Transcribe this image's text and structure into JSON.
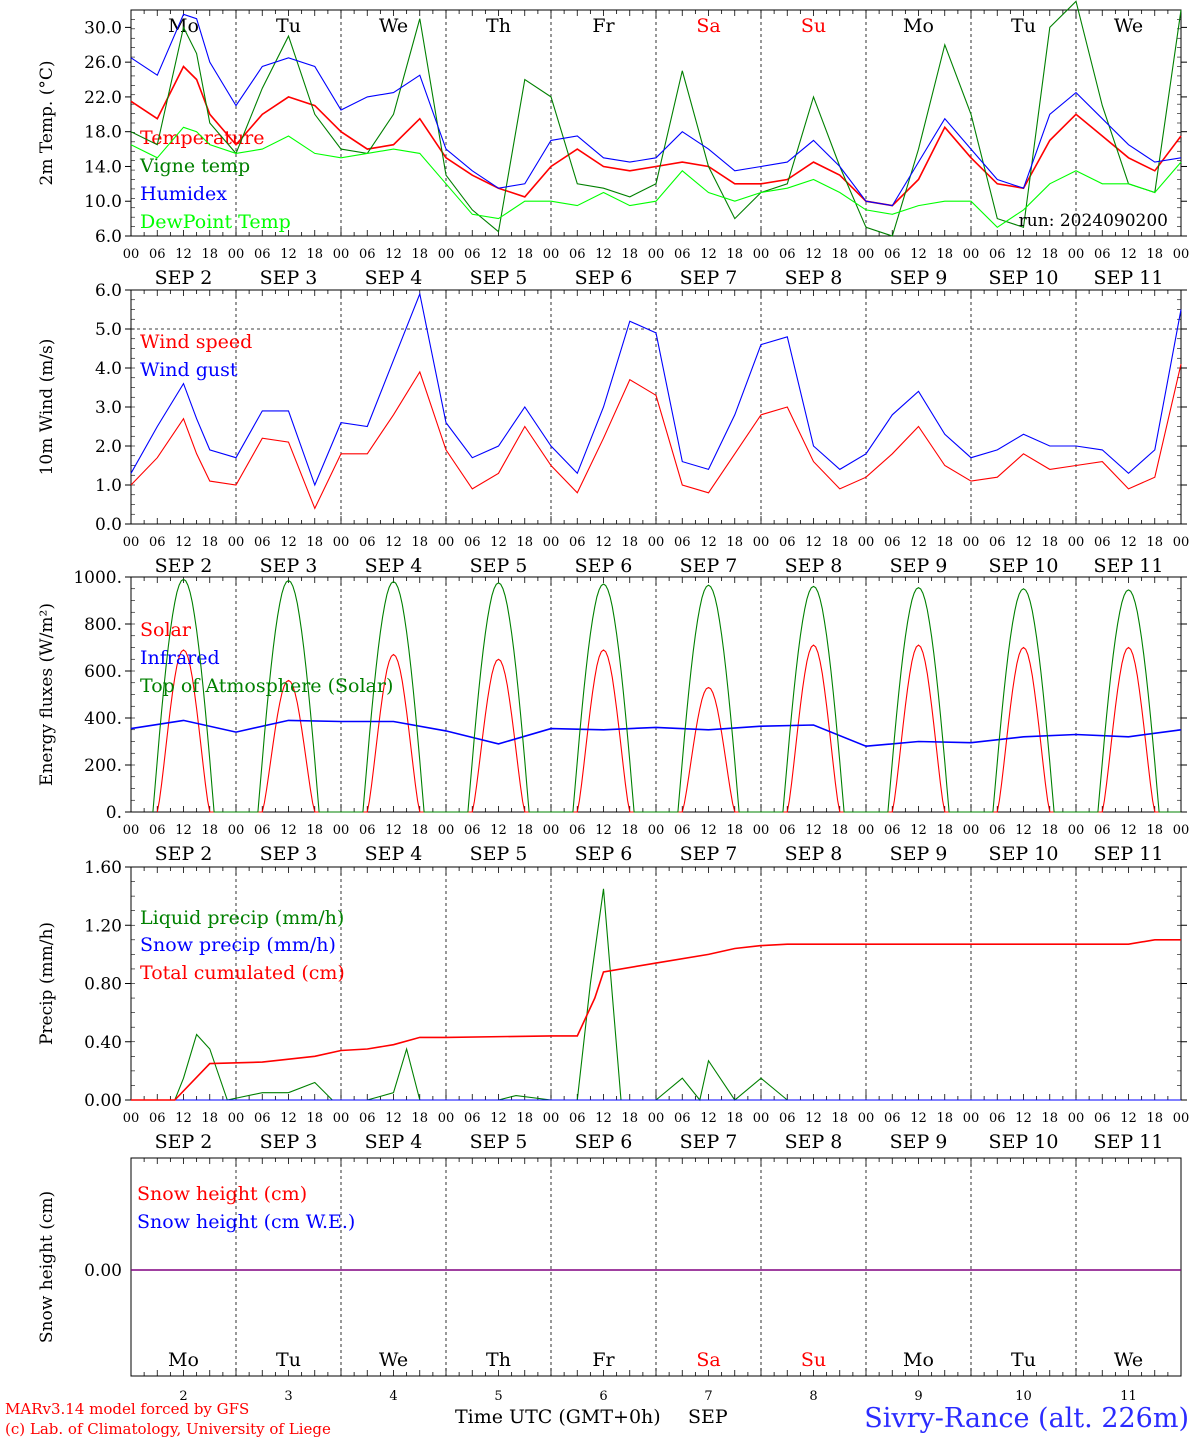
{
  "colors": {
    "red": "#ff0000",
    "dark_green": "#008000",
    "blue": "#0000ff",
    "light_green": "#00ff00",
    "purple": "#800080",
    "black": "#000000",
    "title_blue": "#2b2bff"
  },
  "days": {
    "weekday_labels": [
      "Mo",
      "Tu",
      "We",
      "Th",
      "Fr",
      "Sa",
      "Su",
      "Mo",
      "Tu",
      "We"
    ],
    "weekday_colors": [
      "black",
      "black",
      "black",
      "black",
      "black",
      "red",
      "red",
      "black",
      "black",
      "black"
    ],
    "day_numbers": [
      "2",
      "3",
      "4",
      "5",
      "6",
      "7",
      "8",
      "9",
      "10",
      "11"
    ],
    "hour_ticks": [
      "00",
      "06",
      "12",
      "18"
    ],
    "end_hour": "00",
    "month": "SEP"
  },
  "footer": {
    "credit_line1": "MARv3.14 model forced by GFS",
    "credit_line2": "(c) Lab. of Climatology, University of Liege",
    "xlabel": "Time UTC (GMT+0h)",
    "month_label": "SEP",
    "station": "Sivry-Rance (alt. 226m)"
  },
  "chart_data": [
    {
      "id": "temp",
      "type": "line",
      "ylabel": "2m Temp. (°C)",
      "ylim": [
        6,
        32
      ],
      "yticks": [
        "6.0",
        "10.0",
        "14.0",
        "18.0",
        "22.0",
        "26.0",
        "30.0"
      ],
      "annotation": "run: 2024090200",
      "x_unit": "hours since Mon SEP 2 00 UTC",
      "series": [
        {
          "name": "Temperature",
          "color": "red",
          "x": [
            0,
            6,
            12,
            15,
            18,
            24,
            30,
            36,
            42,
            48,
            54,
            60,
            66,
            72,
            78,
            84,
            90,
            96,
            102,
            108,
            114,
            120,
            126,
            132,
            138,
            144,
            150,
            156,
            162,
            168,
            174,
            180,
            186,
            192,
            198,
            204,
            210,
            216,
            222,
            228,
            234,
            240
          ],
          "y": [
            21.5,
            19.5,
            25.5,
            24,
            20,
            16.5,
            20,
            22,
            21,
            18,
            16,
            16.5,
            19.5,
            15,
            13,
            11.5,
            10.5,
            14,
            16,
            14,
            13.5,
            14,
            14.5,
            14,
            12,
            12,
            12.5,
            14.5,
            13,
            10,
            9.5,
            12.5,
            18.5,
            15,
            12,
            11.5,
            17,
            20,
            17.5,
            15,
            13.5,
            17.5
          ]
        },
        {
          "name": "Vigne temp",
          "color": "dark_green",
          "x": [
            0,
            6,
            12,
            15,
            18,
            24,
            30,
            36,
            42,
            48,
            54,
            60,
            66,
            72,
            78,
            84,
            90,
            96,
            102,
            108,
            114,
            120,
            126,
            132,
            138,
            144,
            150,
            156,
            162,
            168,
            174,
            180,
            186,
            192,
            198,
            204,
            210,
            216,
            222,
            228,
            234,
            240
          ],
          "y": [
            18,
            16.5,
            30,
            27,
            19,
            15.5,
            23,
            29,
            20,
            16,
            15.5,
            20,
            31,
            13,
            9,
            6.5,
            24,
            22,
            12,
            11.5,
            10.5,
            12,
            25,
            14,
            8,
            11,
            12,
            22,
            14,
            7,
            6,
            16,
            28,
            20,
            8,
            7,
            30,
            33,
            21,
            12,
            11,
            32
          ]
        },
        {
          "name": "Humidex",
          "color": "blue",
          "x": [
            0,
            6,
            12,
            15,
            18,
            24,
            30,
            36,
            42,
            48,
            54,
            60,
            66,
            72,
            78,
            84,
            90,
            96,
            102,
            108,
            114,
            120,
            126,
            132,
            138,
            144,
            150,
            156,
            162,
            168,
            174,
            180,
            186,
            192,
            198,
            204,
            210,
            216,
            222,
            228,
            234,
            240
          ],
          "y": [
            26.5,
            24.5,
            31.5,
            31,
            26,
            21,
            25.5,
            26.5,
            25.5,
            20.5,
            22,
            22.5,
            24.5,
            16,
            13.5,
            11.5,
            12,
            17,
            17.5,
            15,
            14.5,
            15,
            18,
            16,
            13.5,
            14,
            14.5,
            17,
            14,
            10,
            9.5,
            14.5,
            19.5,
            16,
            12.5,
            11.5,
            20,
            22.5,
            19.5,
            16.5,
            14.5,
            15
          ]
        },
        {
          "name": "DewPoint Temp",
          "color": "light_green",
          "x": [
            0,
            6,
            12,
            15,
            18,
            24,
            30,
            36,
            42,
            48,
            54,
            60,
            66,
            72,
            78,
            84,
            90,
            96,
            102,
            108,
            114,
            120,
            126,
            132,
            138,
            144,
            150,
            156,
            162,
            168,
            174,
            180,
            186,
            192,
            198,
            204,
            210,
            216,
            222,
            228,
            234,
            240
          ],
          "y": [
            16.5,
            15,
            18.5,
            18,
            16.5,
            15.5,
            16,
            17.5,
            15.5,
            15,
            15.5,
            16,
            15.5,
            12,
            8.5,
            8,
            10,
            10,
            9.5,
            11,
            9.5,
            10,
            13.5,
            11,
            10,
            11,
            11.5,
            12.5,
            11,
            9,
            8.5,
            9.5,
            10,
            10,
            7,
            9,
            12,
            13.5,
            12,
            12,
            11,
            14.5
          ]
        }
      ]
    },
    {
      "id": "wind",
      "type": "line",
      "ylabel": "10m Wind (m/s)",
      "ylim": [
        0,
        6
      ],
      "yticks": [
        "0.0",
        "1.0",
        "2.0",
        "3.0",
        "4.0",
        "5.0",
        "6.0"
      ],
      "hline": 5.0,
      "x_unit": "hours since Mon SEP 2 00 UTC",
      "series": [
        {
          "name": "Wind speed",
          "color": "red",
          "x": [
            0,
            6,
            12,
            15,
            18,
            24,
            30,
            36,
            42,
            48,
            54,
            60,
            66,
            72,
            78,
            84,
            90,
            96,
            102,
            108,
            114,
            120,
            126,
            132,
            138,
            144,
            150,
            156,
            162,
            168,
            174,
            180,
            186,
            192,
            198,
            204,
            210,
            216,
            222,
            228,
            234,
            240
          ],
          "y": [
            1,
            1.7,
            2.7,
            1.8,
            1.1,
            1,
            2.2,
            2.1,
            0.4,
            1.8,
            1.8,
            2.8,
            3.9,
            1.9,
            0.9,
            1.3,
            2.5,
            1.5,
            0.8,
            2.2,
            3.7,
            3.3,
            1,
            0.8,
            1.8,
            2.8,
            3.0,
            1.6,
            0.9,
            1.2,
            1.8,
            2.5,
            1.5,
            1.1,
            1.2,
            1.8,
            1.4,
            1.5,
            1.6,
            0.9,
            1.2,
            4.1
          ]
        },
        {
          "name": "Wind gust",
          "color": "blue",
          "x": [
            0,
            6,
            12,
            15,
            18,
            24,
            30,
            36,
            42,
            48,
            54,
            60,
            66,
            72,
            78,
            84,
            90,
            96,
            102,
            108,
            114,
            120,
            126,
            132,
            138,
            144,
            150,
            156,
            162,
            168,
            174,
            180,
            186,
            192,
            198,
            204,
            210,
            216,
            222,
            228,
            234,
            240
          ],
          "y": [
            1.3,
            2.5,
            3.6,
            2.7,
            1.9,
            1.7,
            2.9,
            2.9,
            1.0,
            2.6,
            2.5,
            4.2,
            5.9,
            2.6,
            1.7,
            2.0,
            3.0,
            2.0,
            1.3,
            3.0,
            5.2,
            4.9,
            1.6,
            1.4,
            2.8,
            4.6,
            4.8,
            2.0,
            1.4,
            1.8,
            2.8,
            3.4,
            2.3,
            1.7,
            1.9,
            2.3,
            2.0,
            2.0,
            1.9,
            1.3,
            1.9,
            5.5
          ]
        }
      ]
    },
    {
      "id": "energy",
      "type": "line",
      "ylabel": "Energy fluxes (W/m²)",
      "ylim": [
        0,
        1000
      ],
      "yticks": [
        "0.",
        "200.",
        "400.",
        "600.",
        "800.",
        "1000."
      ],
      "x_unit": "hours since Mon SEP 2 00 UTC",
      "series": [
        {
          "name": "Solar",
          "color": "red",
          "day_peaks": [
            690,
            560,
            670,
            650,
            690,
            530,
            710,
            710,
            700,
            700
          ]
        },
        {
          "name": "Infrared",
          "color": "blue",
          "x": [
            0,
            12,
            24,
            36,
            48,
            60,
            72,
            84,
            96,
            108,
            120,
            132,
            144,
            156,
            168,
            180,
            192,
            204,
            216,
            228,
            240
          ],
          "y": [
            355,
            390,
            340,
            390,
            385,
            385,
            345,
            290,
            355,
            350,
            360,
            350,
            365,
            370,
            280,
            300,
            295,
            320,
            330,
            320,
            350
          ]
        },
        {
          "name": "Top of Atmosphere (Solar)",
          "color": "dark_green",
          "day_peaks": [
            990,
            985,
            980,
            975,
            970,
            965,
            960,
            955,
            950,
            945
          ]
        }
      ]
    },
    {
      "id": "precip",
      "type": "line",
      "ylabel": "Precip (mm/h)",
      "ylim": [
        0,
        1.6
      ],
      "yticks": [
        "0.00",
        "0.40",
        "0.80",
        "1.20",
        "1.60"
      ],
      "x_unit": "hours since Mon SEP 2 00 UTC",
      "series": [
        {
          "name": "Liquid precip (mm/h)",
          "color": "dark_green",
          "x": [
            0,
            10,
            12,
            15,
            18,
            22,
            30,
            36,
            42,
            46,
            54,
            60,
            63,
            66,
            72,
            84,
            88,
            96,
            102,
            105,
            108,
            112,
            120,
            126,
            130,
            132,
            138,
            144,
            150,
            156
          ],
          "y": [
            0,
            0,
            0.15,
            0.45,
            0.35,
            0,
            0.05,
            0.05,
            0.12,
            0,
            0,
            0.05,
            0.35,
            0,
            0,
            0,
            0.03,
            0,
            0,
            0.8,
            1.45,
            0,
            0,
            0.15,
            0,
            0.27,
            0,
            0.15,
            0,
            0
          ]
        },
        {
          "name": "Snow precip (mm/h)",
          "color": "blue",
          "x": [
            0,
            240
          ],
          "y": [
            0,
            0
          ]
        },
        {
          "name": "Total cumulated (cm)",
          "color": "red",
          "x": [
            0,
            10,
            18,
            30,
            42,
            48,
            54,
            60,
            66,
            72,
            96,
            102,
            106,
            108,
            120,
            132,
            138,
            144,
            150,
            228,
            234,
            240
          ],
          "y": [
            0,
            0,
            0.25,
            0.26,
            0.3,
            0.34,
            0.35,
            0.38,
            0.43,
            0.43,
            0.44,
            0.44,
            0.7,
            0.88,
            0.94,
            1.0,
            1.04,
            1.06,
            1.07,
            1.07,
            1.1,
            1.1
          ]
        }
      ]
    },
    {
      "id": "snow",
      "type": "line",
      "ylabel": "Snow height (cm)",
      "yticks": [
        "0.00"
      ],
      "x_unit": "hours since Mon SEP 2 00 UTC",
      "series": [
        {
          "name": "Snow height (cm)",
          "color": "red",
          "x": [
            0,
            240
          ],
          "y": [
            0,
            0
          ]
        },
        {
          "name": "Snow height (cm W.E.)",
          "color": "blue",
          "x": [
            0,
            240
          ],
          "y": [
            0,
            0
          ]
        }
      ]
    }
  ]
}
